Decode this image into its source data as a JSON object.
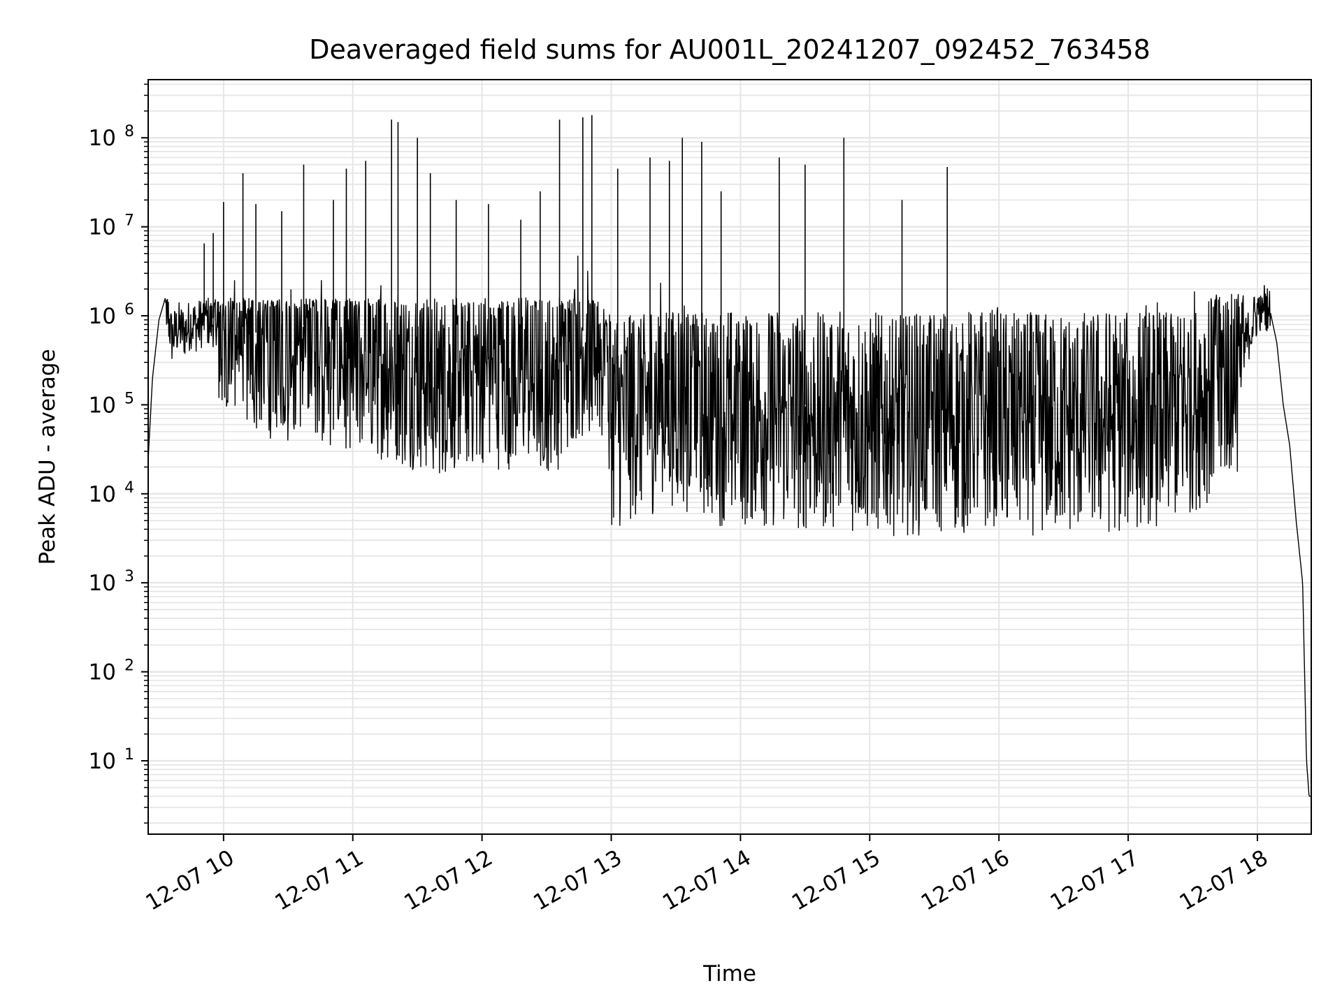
{
  "chart_data": {
    "type": "line",
    "title": "Deaveraged field sums for AU001L_20241207_092452_763458",
    "xlabel": "Time",
    "ylabel": "Peak ADU - average",
    "yscale": "log",
    "xlim": [
      "2024-12-07 09:25",
      "2024-12-07 18:25"
    ],
    "ylim": [
      1.5,
      450000000
    ],
    "grid": true,
    "line_color": "#000000",
    "grid_color": "#e6e6e6",
    "x_tick_labels": [
      "12-07 10",
      "12-07 11",
      "12-07 12",
      "12-07 13",
      "12-07 14",
      "12-07 15",
      "12-07 16",
      "12-07 17",
      "12-07 18"
    ],
    "x_tick_hours": [
      10,
      11,
      12,
      13,
      14,
      15,
      16,
      17,
      18
    ],
    "y_ticks": [
      {
        "base": "10",
        "exp": "1",
        "value": 10
      },
      {
        "base": "10",
        "exp": "2",
        "value": 100
      },
      {
        "base": "10",
        "exp": "3",
        "value": 1000
      },
      {
        "base": "10",
        "exp": "4",
        "value": 10000
      },
      {
        "base": "10",
        "exp": "5",
        "value": 100000
      },
      {
        "base": "10",
        "exp": "6",
        "value": 1000000
      },
      {
        "base": "10",
        "exp": "7",
        "value": 10000000
      },
      {
        "base": "10",
        "exp": "8",
        "value": 100000000
      }
    ],
    "series": [
      {
        "label_note": "",
        "x_hours": [
          9.417,
          9.45,
          9.5,
          9.55,
          9.6,
          9.65,
          9.7,
          9.75,
          9.8,
          9.85,
          9.9,
          9.95,
          10.0,
          10.1,
          10.2,
          10.3,
          10.4,
          10.5,
          10.6,
          10.7,
          10.8,
          10.9,
          11.0,
          11.1,
          11.2,
          11.3,
          11.4,
          11.5,
          11.6,
          11.7,
          11.8,
          11.9,
          12.0,
          12.1,
          12.2,
          12.3,
          12.4,
          12.5,
          12.6,
          12.7,
          12.8,
          12.9,
          13.0,
          13.1,
          13.2,
          13.3,
          13.4,
          13.5,
          13.6,
          13.7,
          13.8,
          13.9,
          14.0,
          14.2,
          14.4,
          14.6,
          14.8,
          15.0,
          15.2,
          15.4,
          15.6,
          15.8,
          16.0,
          16.2,
          16.4,
          16.6,
          16.8,
          17.0,
          17.2,
          17.4,
          17.6,
          17.7,
          17.8,
          17.9,
          18.0,
          18.05,
          18.1,
          18.15,
          18.2,
          18.25,
          18.3,
          18.35,
          18.38,
          18.4,
          18.42
        ],
        "y_center": [
          25000,
          200000,
          900000,
          1600000,
          600000,
          800000,
          700000,
          900000,
          800000,
          1000000,
          900000,
          1000000,
          1000000,
          800000,
          700000,
          600000,
          700000,
          600000,
          800000,
          700000,
          500000,
          500000,
          500000,
          400000,
          400000,
          350000,
          300000,
          300000,
          250000,
          250000,
          300000,
          300000,
          350000,
          300000,
          300000,
          300000,
          300000,
          280000,
          300000,
          600000,
          700000,
          700000,
          120000,
          100000,
          150000,
          150000,
          180000,
          200000,
          150000,
          150000,
          120000,
          110000,
          110000,
          110000,
          100000,
          100000,
          95000,
          95000,
          90000,
          90000,
          95000,
          90000,
          90000,
          90000,
          90000,
          90000,
          90000,
          95000,
          110000,
          130000,
          200000,
          300000,
          400000,
          500000,
          1200000,
          1700000,
          1100000,
          500000,
          100000,
          35000,
          5000,
          1000,
          10,
          4,
          4
        ]
      }
    ],
    "spikes": [
      {
        "x_hour": 9.85,
        "y": 6500000
      },
      {
        "x_hour": 9.92,
        "y": 8500000
      },
      {
        "x_hour": 10.0,
        "y": 19000000
      },
      {
        "x_hour": 10.15,
        "y": 40000000
      },
      {
        "x_hour": 10.25,
        "y": 18000000
      },
      {
        "x_hour": 10.45,
        "y": 15000000
      },
      {
        "x_hour": 10.62,
        "y": 50000000
      },
      {
        "x_hour": 10.85,
        "y": 20000000
      },
      {
        "x_hour": 10.95,
        "y": 45000000
      },
      {
        "x_hour": 11.1,
        "y": 55000000
      },
      {
        "x_hour": 11.3,
        "y": 160000000
      },
      {
        "x_hour": 11.35,
        "y": 150000000
      },
      {
        "x_hour": 11.5,
        "y": 100000000
      },
      {
        "x_hour": 11.6,
        "y": 40000000
      },
      {
        "x_hour": 11.8,
        "y": 20000000
      },
      {
        "x_hour": 12.05,
        "y": 18000000
      },
      {
        "x_hour": 12.3,
        "y": 12000000
      },
      {
        "x_hour": 12.45,
        "y": 25000000
      },
      {
        "x_hour": 12.6,
        "y": 160000000
      },
      {
        "x_hour": 12.78,
        "y": 170000000
      },
      {
        "x_hour": 12.85,
        "y": 180000000
      },
      {
        "x_hour": 13.05,
        "y": 45000000
      },
      {
        "x_hour": 13.3,
        "y": 60000000
      },
      {
        "x_hour": 13.45,
        "y": 55000000
      },
      {
        "x_hour": 13.55,
        "y": 100000000
      },
      {
        "x_hour": 13.7,
        "y": 90000000
      },
      {
        "x_hour": 13.85,
        "y": 25000000
      },
      {
        "x_hour": 14.3,
        "y": 60000000
      },
      {
        "x_hour": 14.5,
        "y": 50000000
      },
      {
        "x_hour": 14.8,
        "y": 100000000
      },
      {
        "x_hour": 15.25,
        "y": 20000000
      },
      {
        "x_hour": 15.6,
        "y": 47000000
      }
    ]
  }
}
